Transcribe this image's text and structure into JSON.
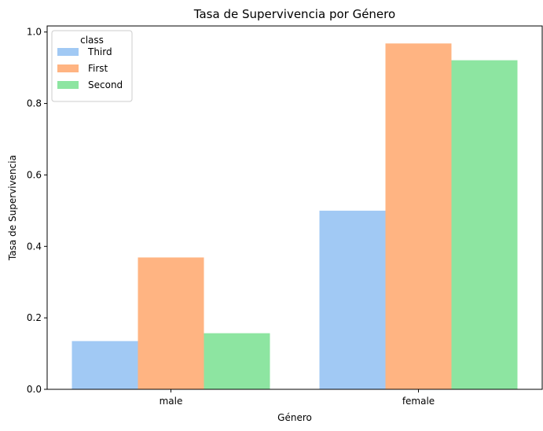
{
  "chart_data": {
    "type": "bar",
    "title": "Tasa de Supervivencia por Género",
    "xlabel": "Género",
    "ylabel": "Tasa de Supervivencia",
    "categories": [
      "male",
      "female"
    ],
    "series": [
      {
        "name": "Third",
        "values": [
          0.135,
          0.5
        ],
        "color": "#a1c9f4"
      },
      {
        "name": "First",
        "values": [
          0.369,
          0.968
        ],
        "color": "#ffb482"
      },
      {
        "name": "Second",
        "values": [
          0.157,
          0.921
        ],
        "color": "#8de5a1"
      }
    ],
    "ylim": [
      0,
      1.0
    ],
    "yticks": [
      "0.0",
      "0.2",
      "0.4",
      "0.6",
      "0.8",
      "1.0"
    ],
    "grid": false,
    "legend": {
      "title": "class",
      "placement": "upper-left"
    }
  }
}
